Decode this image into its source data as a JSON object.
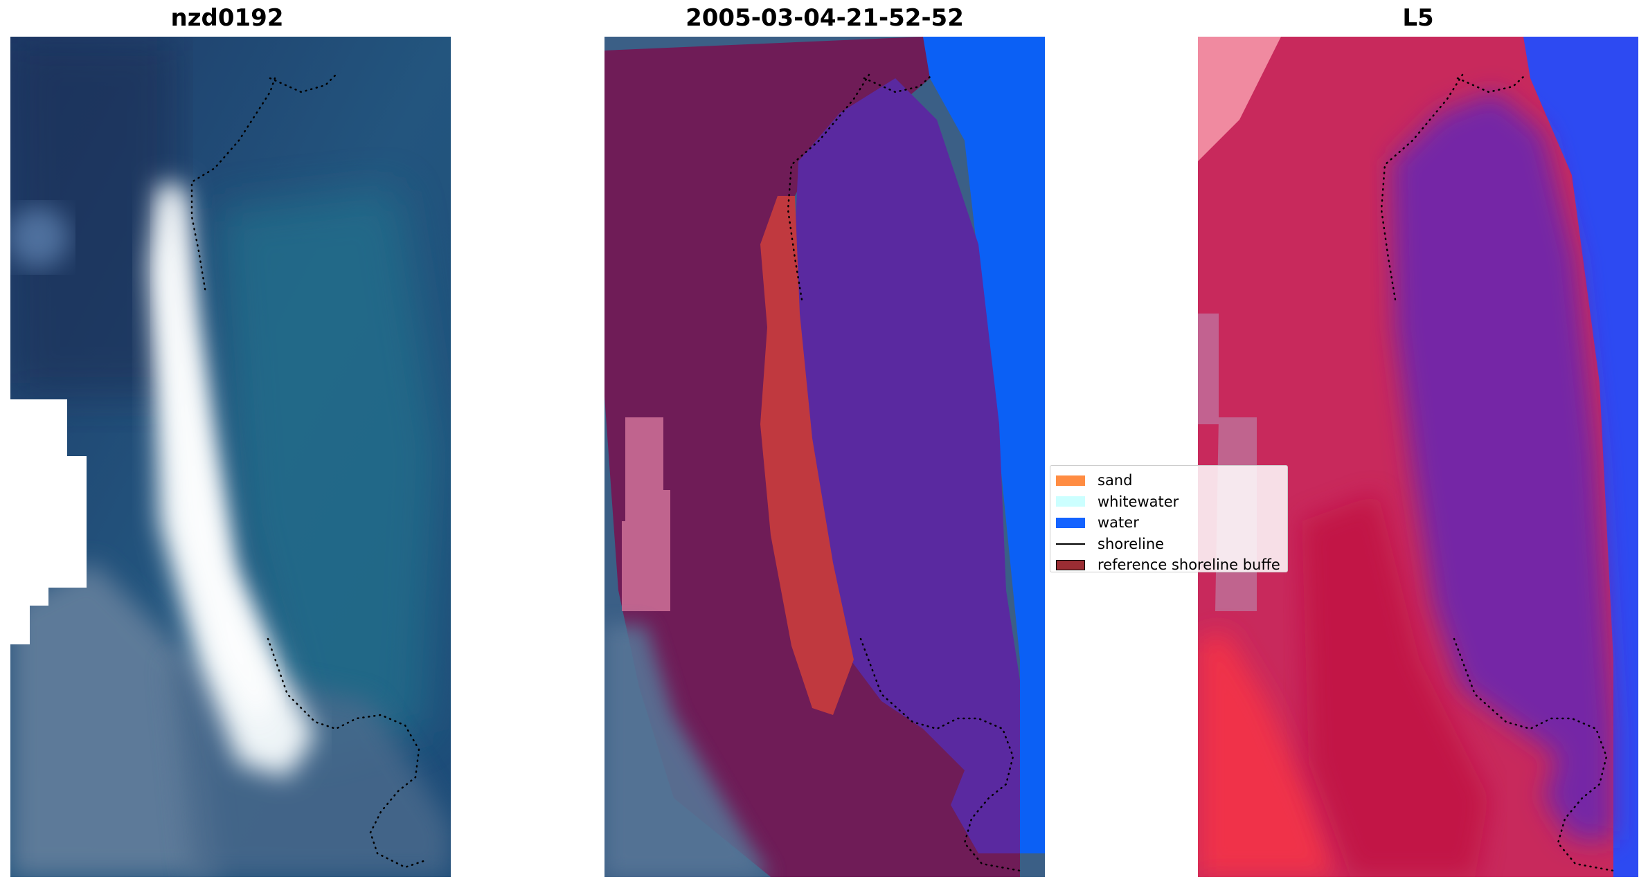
{
  "panels": [
    {
      "title": "nzd0192",
      "kind": "rgb"
    },
    {
      "title": "2005-03-04-21-52-52",
      "kind": "classified"
    },
    {
      "title": "L5",
      "kind": "index"
    }
  ],
  "legend": {
    "items": [
      {
        "label": "sand",
        "color": "#ff8c42",
        "kind": "patch"
      },
      {
        "label": "whitewater",
        "color": "#ccffff",
        "kind": "patch"
      },
      {
        "label": "water",
        "color": "#1463ff",
        "kind": "patch"
      },
      {
        "label": "shoreline",
        "color": "#000000",
        "kind": "line"
      },
      {
        "label": "reference shoreline buffe",
        "color": "#9b2d33",
        "kind": "patch"
      }
    ]
  },
  "colors": {
    "deep_water": "#1d3e6e",
    "reef_water": "#226b8c",
    "sandbar": "#e8eef2",
    "land_texture": "#5f7f9f",
    "buffer": "#6e1a55",
    "class_water": "#5a2a9e",
    "class_sand": "#c0393f",
    "water_patch": "#0a60f5",
    "pink_region": "#c0648e",
    "index_red": "#c8174a",
    "index_purple": "#7025a8",
    "index_blue": "#2a4ff5"
  }
}
